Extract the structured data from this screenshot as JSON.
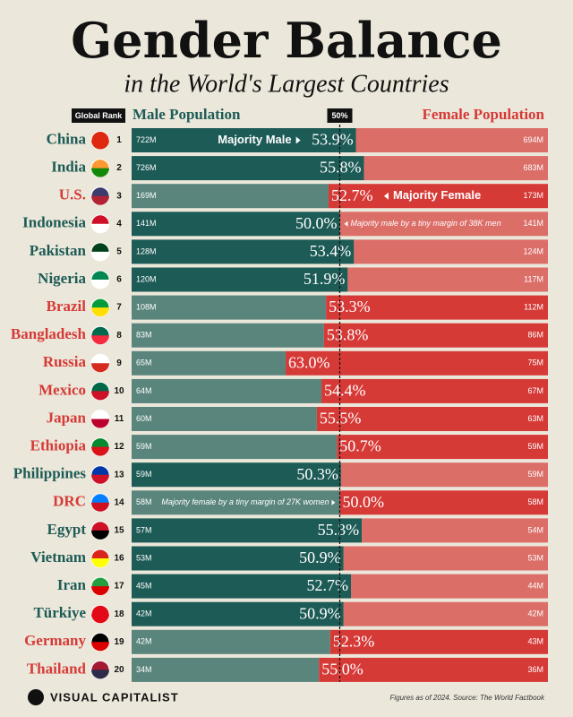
{
  "chart_data": {
    "type": "diverging-bar",
    "title": "Gender Balance",
    "subtitle": "in the World's Largest Countries",
    "rank_header": "Global Rank",
    "categories": [
      "China",
      "India",
      "U.S.",
      "Indonesia",
      "Pakistan",
      "Nigeria",
      "Brazil",
      "Bangladesh",
      "Russia",
      "Mexico",
      "Japan",
      "Ethiopia",
      "Philippines",
      "DRC",
      "Egypt",
      "Vietnam",
      "Iran",
      "Türkiye",
      "Germany",
      "Thailand"
    ],
    "ranks": [
      1,
      2,
      3,
      4,
      5,
      6,
      7,
      8,
      9,
      10,
      11,
      12,
      13,
      14,
      15,
      16,
      17,
      18,
      19,
      20
    ],
    "values": [
      53.9,
      55.8,
      52.7,
      50.0,
      53.4,
      51.9,
      53.3,
      53.8,
      63.0,
      54.4,
      55.5,
      50.7,
      50.3,
      50.0,
      55.3,
      50.9,
      52.7,
      50.9,
      52.3,
      55.0
    ],
    "value_labels": [
      "53.9%",
      "55.8%",
      "52.7%",
      "50.0%",
      "53.4%",
      "51.9%",
      "53.3%",
      "53.8%",
      "63.0%",
      "54.4%",
      "55.5%",
      "50.7%",
      "50.3%",
      "50.0%",
      "55.3%",
      "50.9%",
      "52.7%",
      "50.9%",
      "52.3%",
      "55.0%"
    ],
    "label_colors": [
      "#1d5b56",
      "#1d5b56",
      "#d63a37",
      "#1d5b56",
      "#1d5b56",
      "#1d5b56",
      "#d63a37",
      "#d63a37",
      "#d63a37",
      "#d63a37",
      "#d63a37",
      "#d63a37",
      "#1d5b56",
      "#d63a37",
      "#1d5b56",
      "#1d5b56",
      "#1d5b56",
      "#1d5b56",
      "#d63a37",
      "#d63a37"
    ],
    "series": [
      {
        "name": "Male Population",
        "color": "#1d5b56",
        "values": [
          722,
          726,
          169,
          141,
          128,
          120,
          108,
          83,
          65,
          64,
          60,
          59,
          59,
          58,
          57,
          53,
          45,
          42,
          42,
          34
        ],
        "value_labels": [
          "722M",
          "726M",
          "169M",
          "141M",
          "128M",
          "120M",
          "108M",
          "83M",
          "65M",
          "64M",
          "60M",
          "59M",
          "59M",
          "58M",
          "57M",
          "53M",
          "45M",
          "42M",
          "42M",
          "34M"
        ]
      },
      {
        "name": "Female Population",
        "color": "#d63a37",
        "values": [
          694,
          683,
          173,
          141,
          124,
          117,
          112,
          86,
          75,
          67,
          63,
          59,
          59,
          58,
          54,
          53,
          44,
          42,
          43,
          36
        ],
        "value_labels": [
          "694M",
          "683M",
          "173M",
          "141M",
          "124M",
          "117M",
          "112M",
          "86M",
          "75M",
          "67M",
          "63M",
          "59M",
          "59M",
          "58M",
          "54M",
          "53M",
          "44M",
          "42M",
          "43M",
          "36M"
        ]
      }
    ],
    "xlim": [
      0,
      100
    ],
    "xticks": [
      {
        "value": 50,
        "label": "50%"
      }
    ],
    "annotations": [
      {
        "text": "Majority Male",
        "category": "China"
      },
      {
        "text": "Majority Female",
        "category": "U.S."
      },
      {
        "text": "Majority male by a tiny margin of 38K men",
        "category": "Indonesia"
      },
      {
        "text": "Majority female by a tiny margin of 27K women",
        "category": "DRC"
      }
    ],
    "source": "Figures as of 2024. Source: The World Factbook",
    "brand": "VISUAL CAPITALIST"
  }
}
